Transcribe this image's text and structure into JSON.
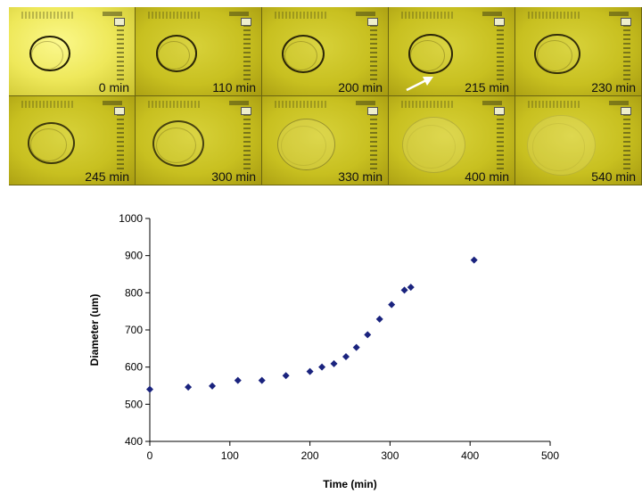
{
  "micrographs": [
    {
      "label": "0 min",
      "bright": true,
      "size": 0.55,
      "edge": 1.0,
      "arrow": false
    },
    {
      "label": "110 min",
      "bright": false,
      "size": 0.56,
      "edge": 0.95,
      "arrow": false
    },
    {
      "label": "200 min",
      "bright": false,
      "size": 0.58,
      "edge": 0.95,
      "arrow": false
    },
    {
      "label": "215 min",
      "bright": false,
      "size": 0.6,
      "edge": 0.95,
      "arrow": true
    },
    {
      "label": "230 min",
      "bright": false,
      "size": 0.62,
      "edge": 0.9,
      "arrow": false
    },
    {
      "label": "245 min",
      "bright": false,
      "size": 0.64,
      "edge": 0.85,
      "arrow": false
    },
    {
      "label": "300 min",
      "bright": false,
      "size": 0.7,
      "edge": 0.8,
      "arrow": false
    },
    {
      "label": "330 min",
      "bright": false,
      "size": 0.78,
      "edge": 0.35,
      "arrow": false
    },
    {
      "label": "400 min",
      "bright": false,
      "size": 0.86,
      "edge": 0.18,
      "arrow": false
    },
    {
      "label": "540 min",
      "bright": false,
      "size": 0.92,
      "edge": 0.12,
      "arrow": false
    }
  ],
  "colors": {
    "marker": "#1a237e",
    "axis": "#000000"
  },
  "chart_data": {
    "type": "scatter",
    "title": "",
    "xlabel": "Time (min)",
    "ylabel": "Diameter (um)",
    "xlim": [
      0,
      500
    ],
    "ylim": [
      400,
      1000
    ],
    "xticks": [
      0,
      100,
      200,
      300,
      400,
      500
    ],
    "yticks": [
      400,
      500,
      600,
      700,
      800,
      900,
      1000
    ],
    "grid": false,
    "legend": "none",
    "series": [
      {
        "x": [
          0,
          48,
          78,
          110,
          140,
          170,
          200,
          215,
          230,
          245,
          258,
          272,
          287,
          302,
          318,
          326,
          405
        ],
        "y": [
          540,
          546,
          549,
          564,
          564,
          577,
          588,
          600,
          609,
          628,
          653,
          687,
          729,
          768,
          807,
          815,
          888
        ]
      }
    ]
  }
}
